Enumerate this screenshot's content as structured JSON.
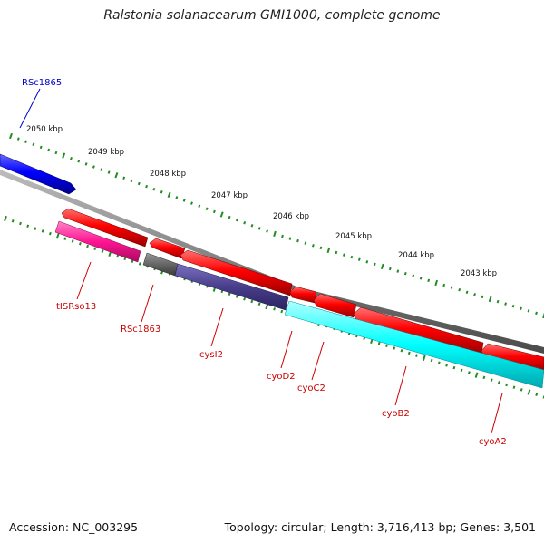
{
  "title": "Ralstonia solanacearum GMI1000, complete genome",
  "footer": {
    "accession": "Accession: NC_003295",
    "info": "Topology: circular; Length: 3,716,413 bp; Genes: 3,501"
  },
  "scale_labels": [
    "2050 kbp",
    "2049 kbp",
    "2048 kbp",
    "2047 kbp",
    "2046 kbp",
    "2045 kbp",
    "2044 kbp",
    "2043 kbp"
  ],
  "genes": [
    {
      "name": "RSc1865",
      "color": "#0000cc"
    },
    {
      "name": "tISRso13",
      "color": "#cc0000"
    },
    {
      "name": "RSc1863",
      "color": "#cc0000"
    },
    {
      "name": "cysI2",
      "color": "#cc0000"
    },
    {
      "name": "cyoD2",
      "color": "#cc0000"
    },
    {
      "name": "cyoC2",
      "color": "#cc0000"
    },
    {
      "name": "cyoB2",
      "color": "#cc0000"
    },
    {
      "name": "cyoA2",
      "color": "#cc0000"
    }
  ],
  "colors": {
    "forward_cds": "#0000ff",
    "reverse_cds": "#ee0000",
    "pink_feature": "#ff1493",
    "gray_feature": "#666666",
    "slate_feature": "#483d8b",
    "cyan_feature": "#00ffff",
    "backbone": "#808080",
    "ticks": "#228b22"
  }
}
